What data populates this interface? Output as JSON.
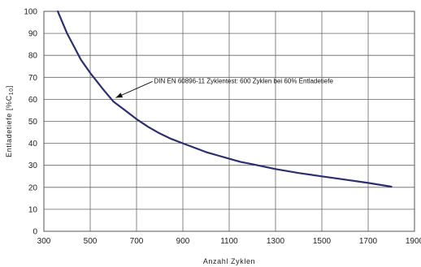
{
  "chart_data": {
    "type": "line",
    "title": "",
    "xlabel": "Anzahl Zyklen",
    "ylabel_main": "Entladetiefe [%C",
    "ylabel_sub": "10",
    "ylabel_end": "]",
    "xlim": [
      300,
      1900
    ],
    "ylim": [
      0,
      100
    ],
    "x_ticks": [
      300,
      500,
      700,
      900,
      1100,
      1300,
      1500,
      1700,
      1900
    ],
    "y_ticks": [
      0,
      10,
      20,
      30,
      40,
      50,
      60,
      70,
      80,
      90,
      100
    ],
    "grid": true,
    "legend": "none",
    "series": [
      {
        "color": "#2b2f6e",
        "points": [
          [
            360,
            100
          ],
          [
            380,
            95
          ],
          [
            400,
            90
          ],
          [
            420,
            86
          ],
          [
            440,
            82
          ],
          [
            460,
            78
          ],
          [
            480,
            75
          ],
          [
            500,
            72
          ],
          [
            530,
            68
          ],
          [
            560,
            64
          ],
          [
            600,
            59
          ],
          [
            650,
            55
          ],
          [
            700,
            51
          ],
          [
            750,
            47.5
          ],
          [
            800,
            44.5
          ],
          [
            850,
            42
          ],
          [
            900,
            40
          ],
          [
            950,
            38
          ],
          [
            1000,
            36
          ],
          [
            1050,
            34.5
          ],
          [
            1100,
            33
          ],
          [
            1150,
            31.5
          ],
          [
            1200,
            30.5
          ],
          [
            1300,
            28.3
          ],
          [
            1400,
            26.5
          ],
          [
            1500,
            25
          ],
          [
            1600,
            23.5
          ],
          [
            1700,
            22
          ],
          [
            1800,
            20.3
          ]
        ]
      }
    ],
    "annotation": {
      "text": "DIN EN 60896-11 Zyklentest: 600 Zyklen bei 60% Entladetiefe",
      "point": [
        600,
        60
      ]
    }
  }
}
